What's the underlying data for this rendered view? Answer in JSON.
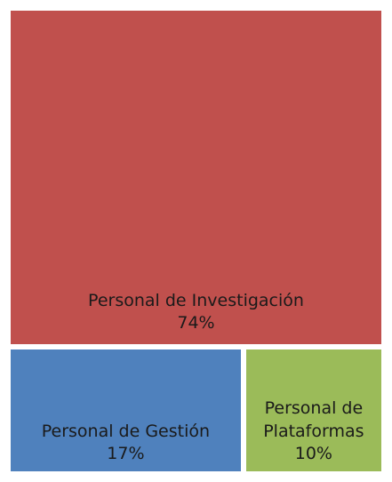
{
  "chart_data": {
    "type": "treemap",
    "categories": [
      "Personal de Investigación",
      "Personal de Gestión",
      "Personal de Plataformas"
    ],
    "values": [
      74,
      17,
      10
    ],
    "value_labels": [
      "74%",
      "17%",
      "10%"
    ],
    "colors": [
      "#c0504d",
      "#4f81bd",
      "#9bbb59"
    ]
  }
}
